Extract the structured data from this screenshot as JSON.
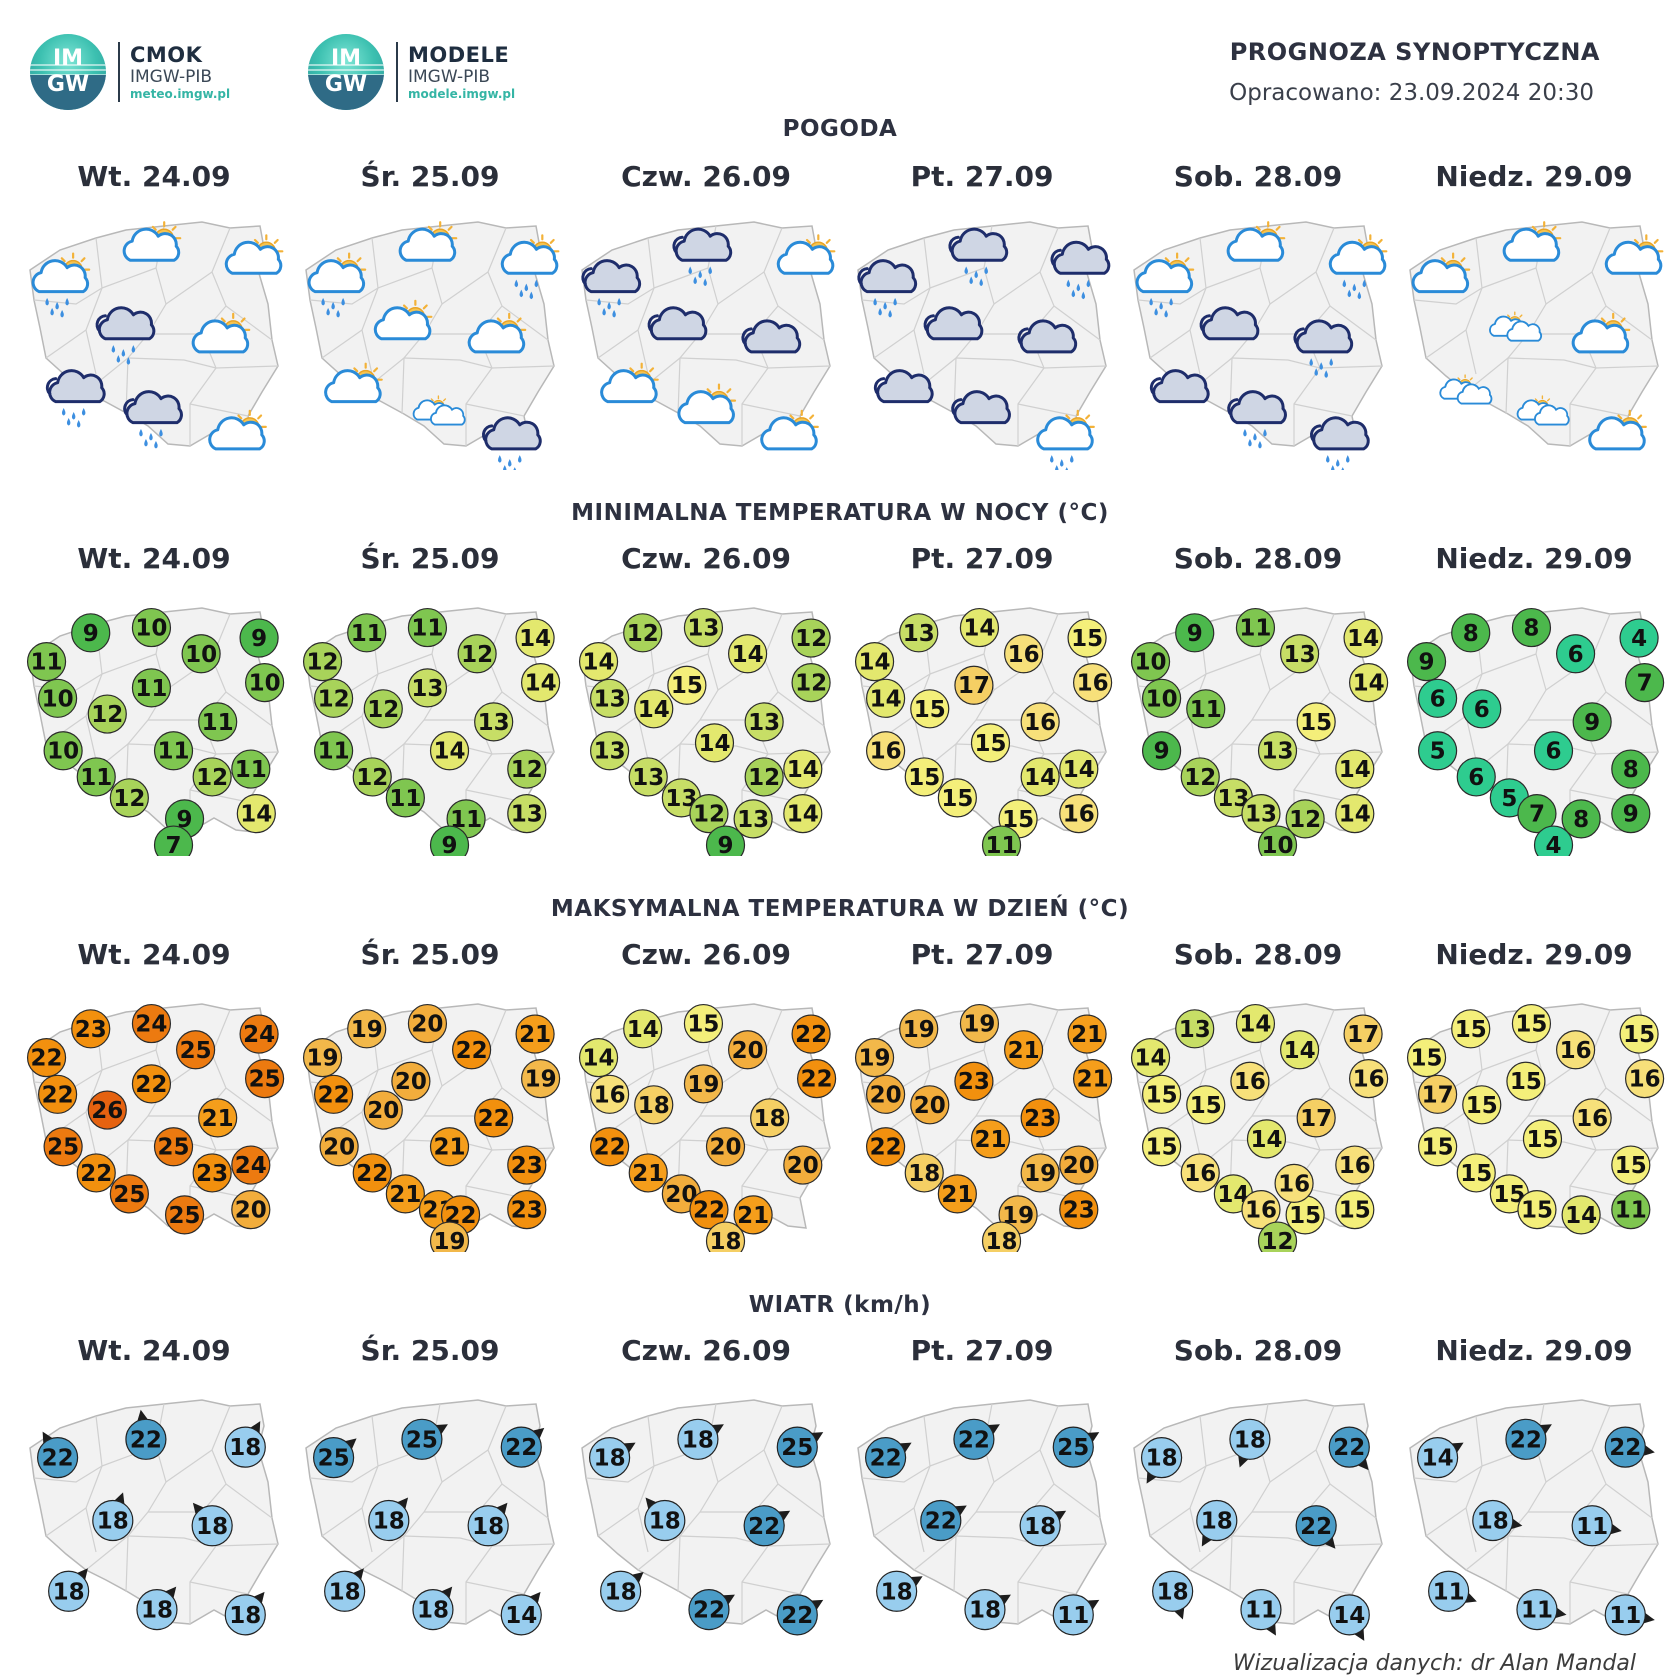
{
  "logos": [
    {
      "name": "CMOK",
      "org": "IMGW-PIB",
      "url": "meteo.imgw.pl",
      "mark_top": "IM",
      "mark_bottom": "GW"
    },
    {
      "name": "MODELE",
      "org": "IMGW-PIB",
      "url": "modele.imgw.pl",
      "mark_top": "IM",
      "mark_bottom": "GW"
    }
  ],
  "header": {
    "title": "PROGNOZA SYNOPTYCZNA",
    "prepared": "Opracowano: 23.09.2024 20:30"
  },
  "days": [
    "Wt. 24.09",
    "Śr. 25.09",
    "Czw. 26.09",
    "Pt. 27.09",
    "Sob. 28.09",
    "Niedz. 29.09"
  ],
  "sections": {
    "weather": "POGODA",
    "tmin": "MINIMALNA TEMPERATURA W NOCY (°C)",
    "tmax": "MAKSYMALNA TEMPERATURA W DZIEŃ (°C)",
    "wind": "WIATR (km/h)"
  },
  "weather": [
    [
      "sun-cloud-rain",
      "sun-cloud",
      "sun-cloud",
      "dark-cloud-rain",
      "sun-cloud",
      "dark-cloud-rain",
      "dark-cloud-rain",
      "sun-cloud"
    ],
    [
      "sun-cloud-rain",
      "sun-cloud",
      "sun-cloud-rain",
      "sun-cloud",
      "sun-cloud",
      "sun-cloud",
      "small-clouds",
      "dark-cloud-rain"
    ],
    [
      "dark-cloud-rain",
      "dark-cloud-rain",
      "sun-cloud",
      "dark-cloud",
      "dark-cloud",
      "sun-cloud",
      "sun-cloud",
      "sun-cloud"
    ],
    [
      "dark-cloud-rain",
      "dark-cloud-rain",
      "dark-cloud-rain",
      "dark-cloud",
      "dark-cloud",
      "dark-cloud",
      "dark-cloud",
      "sun-cloud-rain"
    ],
    [
      "sun-cloud-rain",
      "sun-cloud",
      "sun-cloud-rain",
      "dark-cloud",
      "dark-cloud-rain",
      "dark-cloud",
      "dark-cloud-rain",
      "dark-cloud-rain"
    ],
    [
      "sun-cloud",
      "sun-cloud",
      "sun-cloud",
      "small-clouds",
      "sun-cloud",
      "small-clouds",
      "small-clouds",
      "sun-cloud"
    ]
  ],
  "tmin": [
    [
      9,
      10,
      9,
      11,
      10,
      10,
      10,
      11,
      12,
      11,
      10,
      11,
      11,
      12,
      11,
      12,
      9,
      14,
      7
    ],
    [
      11,
      11,
      14,
      12,
      12,
      14,
      12,
      12,
      13,
      13,
      11,
      14,
      12,
      12,
      11,
      11,
      13,
      9
    ],
    [
      12,
      13,
      12,
      14,
      14,
      15,
      12,
      13,
      14,
      13,
      14,
      13,
      13,
      14,
      13,
      12,
      13,
      14,
      9,
      12
    ],
    [
      13,
      14,
      15,
      14,
      16,
      16,
      17,
      14,
      15,
      16,
      15,
      16,
      15,
      14,
      15,
      15,
      14,
      16,
      11
    ],
    [
      9,
      11,
      14,
      10,
      13,
      14,
      10,
      11,
      15,
      9,
      13,
      12,
      14,
      13,
      13,
      12,
      14,
      10
    ],
    [
      8,
      8,
      4,
      9,
      6,
      7,
      6,
      6,
      9,
      5,
      6,
      6,
      8,
      5,
      7,
      8,
      9,
      4
    ]
  ],
  "tmax": [
    [
      23,
      24,
      24,
      22,
      25,
      25,
      22,
      22,
      26,
      21,
      25,
      25,
      22,
      23,
      24,
      25,
      25,
      20
    ],
    [
      19,
      20,
      21,
      19,
      22,
      19,
      22,
      20,
      20,
      22,
      20,
      21,
      22,
      23,
      21,
      21,
      22,
      23,
      19
    ],
    [
      14,
      15,
      22,
      14,
      20,
      22,
      16,
      18,
      19,
      18,
      22,
      20,
      21,
      20,
      20,
      22,
      21,
      18
    ],
    [
      19,
      19,
      21,
      19,
      21,
      21,
      23,
      20,
      20,
      23,
      21,
      22,
      18,
      20,
      21,
      19,
      19,
      23,
      18
    ],
    [
      13,
      14,
      17,
      14,
      14,
      16,
      16,
      15,
      15,
      17,
      14,
      15,
      16,
      16,
      14,
      16,
      15,
      15,
      16,
      12
    ],
    [
      15,
      15,
      15,
      15,
      16,
      16,
      15,
      17,
      15,
      16,
      15,
      15,
      15,
      15,
      15,
      15,
      14,
      11
    ]
  ],
  "wind": [
    [
      22,
      22,
      18,
      18,
      18,
      18,
      18,
      18
    ],
    [
      25,
      25,
      22,
      18,
      18,
      18,
      18,
      14
    ],
    [
      18,
      18,
      25,
      18,
      22,
      18,
      22,
      22
    ],
    [
      22,
      22,
      25,
      22,
      18,
      18,
      18,
      11
    ],
    [
      18,
      18,
      22,
      18,
      22,
      18,
      11,
      14
    ],
    [
      14,
      22,
      22,
      18,
      11,
      11,
      11,
      11
    ]
  ],
  "credit": "Wizualizacja danych: dr Alan Mandal"
}
